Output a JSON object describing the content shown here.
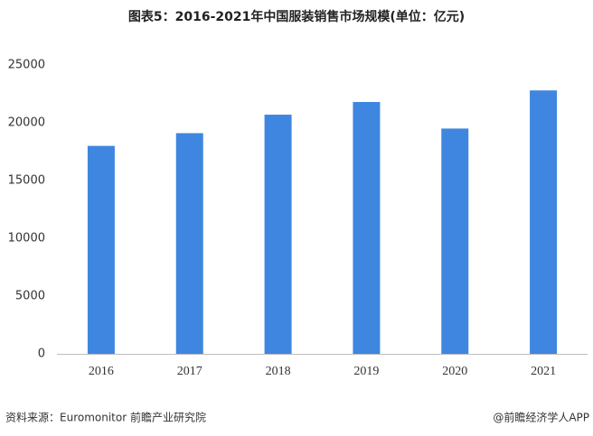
{
  "chart_data": {
    "type": "bar",
    "title": "图表5：2016-2021年中国服装销售市场规模(单位：亿元)",
    "categories": [
      "2016",
      "2017",
      "2018",
      "2019",
      "2020",
      "2021"
    ],
    "values": [
      18000,
      19100,
      20700,
      21800,
      19500,
      22800
    ],
    "color": "#3f86e0",
    "ylim": [
      0,
      25000
    ],
    "yticks": [
      0,
      5000,
      10000,
      15000,
      20000,
      25000
    ],
    "grid": false,
    "source": "资料来源：Euromonitor 前瞻产业研究院",
    "credit": "@前瞻经济学人APP"
  }
}
